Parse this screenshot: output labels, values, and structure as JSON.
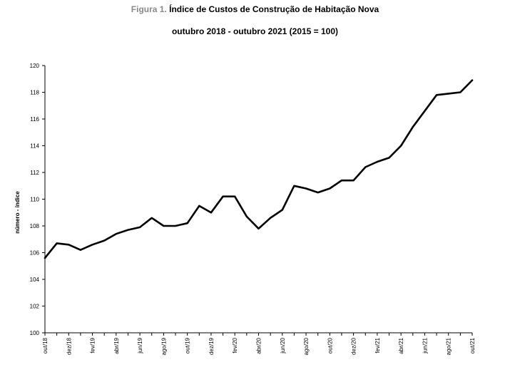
{
  "header": {
    "figure_label": "Figura 1.",
    "title": "Índice de Custos de Construção de Habitação Nova",
    "subtitle": "outubro 2018 - outubro 2021 (2015 = 100)"
  },
  "chart_data": {
    "type": "line",
    "title": "Índice de Custos de Construção de Habitação Nova",
    "subtitle": "outubro 2018 - outubro 2021 (2015 = 100)",
    "xlabel": "",
    "ylabel": "número - índice",
    "ylim": [
      100,
      120
    ],
    "yticks": [
      100,
      102,
      104,
      106,
      108,
      110,
      112,
      114,
      116,
      118,
      120
    ],
    "grid": false,
    "x": [
      "out/18",
      "nov/18",
      "dez/18",
      "jan/19",
      "fev/19",
      "mar/19",
      "abr/19",
      "mai/19",
      "jun/19",
      "jul/19",
      "ago/19",
      "set/19",
      "out/19",
      "nov/19",
      "dez/19",
      "jan/20",
      "fev/20",
      "mar/20",
      "abr/20",
      "mai/20",
      "jun/20",
      "jul/20",
      "ago/20",
      "set/20",
      "out/20",
      "nov/20",
      "dez/20",
      "jan/21",
      "fev/21",
      "mar/21",
      "abr/21",
      "mai/21",
      "jun/21",
      "jul/21",
      "ago/21",
      "set/21",
      "out/21"
    ],
    "xtick_labels": [
      "out/18",
      "dez/18",
      "fev/19",
      "abr/19",
      "jun/19",
      "ago/19",
      "out/19",
      "dez/19",
      "fev/20",
      "abr/20",
      "jun/20",
      "ago/20",
      "out/20",
      "dez/20",
      "fev/21",
      "abr/21",
      "jun/21",
      "ago/21",
      "out/21"
    ],
    "series": [
      {
        "values": [
          105.6,
          106.7,
          106.6,
          106.2,
          106.6,
          106.9,
          107.4,
          107.7,
          107.9,
          108.6,
          108.0,
          108.0,
          108.2,
          109.5,
          109.0,
          110.2,
          110.2,
          108.7,
          107.8,
          108.6,
          109.2,
          111.0,
          110.8,
          110.5,
          110.8,
          111.4,
          111.4,
          112.4,
          112.8,
          113.1,
          114.0,
          115.4,
          116.6,
          117.8,
          117.9,
          118.0,
          118.9
        ]
      }
    ],
    "line_color": "#000000"
  }
}
